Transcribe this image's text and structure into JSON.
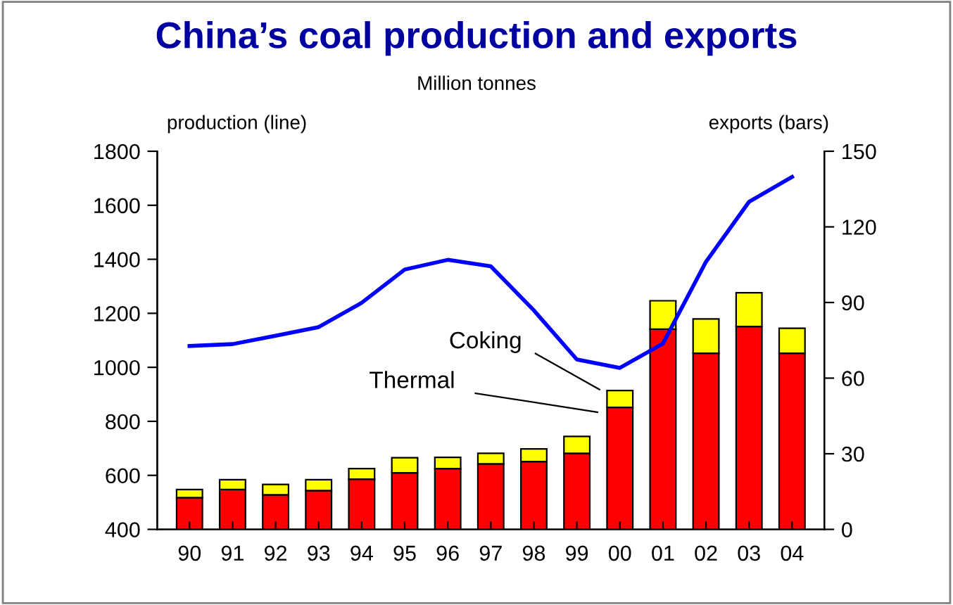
{
  "chart_data": {
    "type": "bar",
    "title": "China’s coal production and exports",
    "subtitle": "Million tonnes",
    "ylabel": "production (line)",
    "y2label": "exports (bars)",
    "categories": [
      "90",
      "91",
      "92",
      "93",
      "94",
      "95",
      "96",
      "97",
      "98",
      "99",
      "00",
      "01",
      "02",
      "03",
      "04"
    ],
    "stacked": true,
    "series": [
      {
        "axis": "y2",
        "color": "#ff0000",
        "values": [
          12.6,
          15.8,
          13.7,
          15.4,
          19.9,
          22.4,
          24.1,
          26.0,
          26.9,
          30.2,
          48.4,
          79.4,
          69.9,
          80.5,
          69.9
        ]
      },
      {
        "axis": "y2",
        "color": "#ffff00",
        "values": [
          3.2,
          3.9,
          4.1,
          4.3,
          4.2,
          6.0,
          4.5,
          4.2,
          5.0,
          6.7,
          6.7,
          11.3,
          13.6,
          13.4,
          9.9
        ]
      },
      {
        "type": "line",
        "axis": "y",
        "color": "#0000ff",
        "values": [
          1079,
          1086,
          1117,
          1149,
          1239,
          1362,
          1398,
          1374,
          1211,
          1029,
          998,
          1088,
          1391,
          1613,
          1705
        ]
      }
    ],
    "ylim": [
      400,
      1800
    ],
    "yticks": [
      400,
      600,
      800,
      1000,
      1200,
      1400,
      1600,
      1800
    ],
    "y2lim": [
      0,
      150
    ],
    "y2ticks": [
      0,
      30,
      60,
      90,
      120,
      150
    ],
    "annotations": [
      "Coking",
      "Thermal"
    ],
    "grid": false,
    "legend": false,
    "marker": "none",
    "line_style": "solid"
  }
}
